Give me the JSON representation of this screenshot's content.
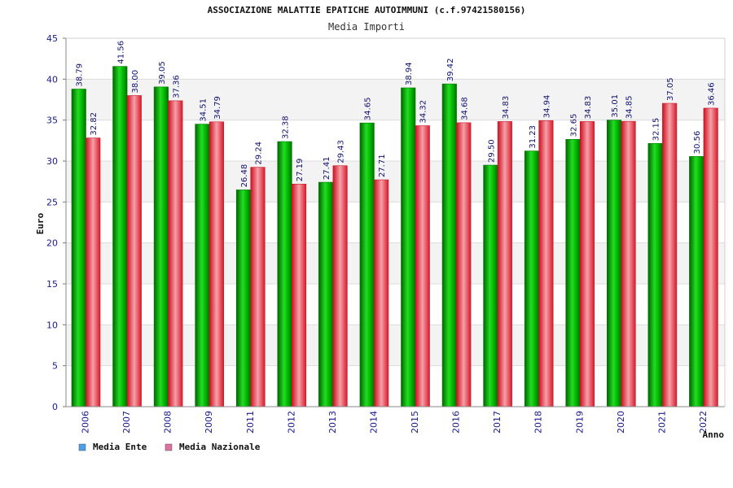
{
  "chart_data": {
    "type": "bar",
    "title": "ASSOCIAZIONE MALATTIE EPATICHE AUTOIMMUNI (c.f.97421580156)",
    "subtitle": "Media Importi",
    "xlabel": "Anno",
    "ylabel": "Euro",
    "ylim": [
      0,
      45
    ],
    "yticks": [
      0,
      5,
      10,
      15,
      20,
      25,
      30,
      35,
      40,
      45
    ],
    "grid": true,
    "legend_position": "bottom-left",
    "categories": [
      "2006",
      "2007",
      "2008",
      "2009",
      "2011",
      "2012",
      "2013",
      "2014",
      "2015",
      "2016",
      "2017",
      "2018",
      "2019",
      "2020",
      "2021",
      "2022"
    ],
    "series": [
      {
        "name": "Media Ente",
        "color": "#00b000",
        "legend_color": "#4a9eea",
        "values": [
          38.79,
          41.56,
          39.05,
          34.51,
          26.48,
          32.38,
          27.41,
          34.65,
          38.94,
          39.42,
          29.5,
          31.23,
          32.65,
          35.01,
          32.15,
          30.56
        ],
        "labels": [
          "38.79",
          "41.56",
          "39.05",
          "34.51",
          "26.48",
          "32.38",
          "27.41",
          "34.65",
          "38.94",
          "39.42",
          "29.50",
          "31.23",
          "32.65",
          "35.01",
          "32.15",
          "30.56"
        ]
      },
      {
        "name": "Media Nazionale",
        "color": "#e8283a",
        "legend_color": "#e070a0",
        "values": [
          32.82,
          38.0,
          37.36,
          34.79,
          29.24,
          27.19,
          29.43,
          27.71,
          34.32,
          34.68,
          34.83,
          34.94,
          34.83,
          34.85,
          37.05,
          36.46
        ],
        "labels": [
          "32.82",
          "38.00",
          "37.36",
          "34.79",
          "29.24",
          "27.19",
          "29.43",
          "27.71",
          "34.32",
          "34.68",
          "34.83",
          "34.94",
          "34.83",
          "34.85",
          "37.05",
          "36.46"
        ]
      }
    ]
  }
}
